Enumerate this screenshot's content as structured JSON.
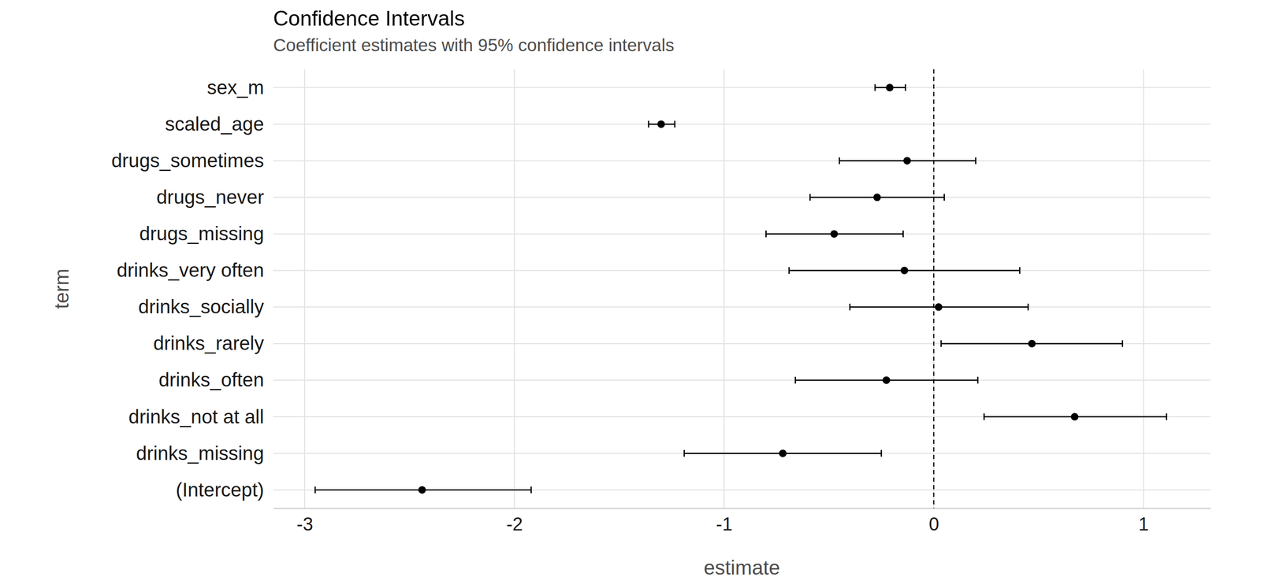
{
  "chart_data": {
    "type": "errorbar",
    "orientation": "horizontal",
    "title": "Confidence Intervals",
    "subtitle": "Coefficient estimates with 95% confidence intervals",
    "x_label": "estimate",
    "y_label": "term",
    "categories": [
      "sex_m",
      "scaled_age",
      "drugs_sometimes",
      "drugs_never",
      "drugs_missing",
      "drinks_very often",
      "drinks_socially",
      "drinks_rarely",
      "drinks_often",
      "drinks_not at all",
      "drinks_missing",
      "(Intercept)"
    ],
    "values": [
      -0.21,
      -1.3,
      -0.127,
      -0.27,
      -0.475,
      -0.14,
      0.023,
      0.468,
      -0.226,
      0.672,
      -0.72,
      -2.44
    ],
    "ci_low": [
      -0.28,
      -1.36,
      -0.45,
      -0.59,
      -0.8,
      -0.69,
      -0.4,
      0.035,
      -0.66,
      0.24,
      -1.19,
      -2.95
    ],
    "ci_high": [
      -0.135,
      -1.235,
      0.2,
      0.05,
      -0.146,
      0.41,
      0.45,
      0.9,
      0.21,
      1.11,
      -0.25,
      -1.92
    ],
    "vline": 0,
    "xlim": [
      -3.15,
      1.32
    ],
    "xticks": [
      -3,
      -2,
      -1,
      0,
      1
    ],
    "grid": true,
    "color": "#000000"
  }
}
